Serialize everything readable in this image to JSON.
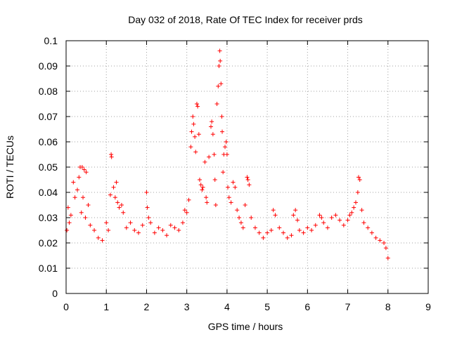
{
  "chart_data": {
    "type": "scatter",
    "title": "Day 032 of 2018, Rate Of TEC Index for receiver prds",
    "xlabel": "GPS time / hours",
    "ylabel": "ROTI / TECUs",
    "xlim": [
      0,
      9
    ],
    "ylim": [
      0,
      0.1
    ],
    "xticks": [
      "0",
      "1",
      "2",
      "3",
      "4",
      "5",
      "6",
      "7",
      "8",
      "9"
    ],
    "yticks": [
      "0",
      "0.01",
      "0.02",
      "0.03",
      "0.04",
      "0.05",
      "0.06",
      "0.07",
      "0.08",
      "0.09",
      "0.1"
    ],
    "grid": true,
    "marker": "+",
    "color": "#ff0000",
    "series": [
      {
        "name": "ROTI",
        "points": [
          [
            0.02,
            0.025
          ],
          [
            0.05,
            0.034
          ],
          [
            0.08,
            0.028
          ],
          [
            0.12,
            0.031
          ],
          [
            0.18,
            0.044
          ],
          [
            0.22,
            0.038
          ],
          [
            0.28,
            0.041
          ],
          [
            0.32,
            0.046
          ],
          [
            0.35,
            0.05
          ],
          [
            0.4,
            0.05
          ],
          [
            0.45,
            0.049
          ],
          [
            0.5,
            0.048
          ],
          [
            0.42,
            0.038
          ],
          [
            0.55,
            0.035
          ],
          [
            0.48,
            0.03
          ],
          [
            0.38,
            0.032
          ],
          [
            0.6,
            0.027
          ],
          [
            0.7,
            0.025
          ],
          [
            0.8,
            0.022
          ],
          [
            0.9,
            0.021
          ],
          [
            1.0,
            0.028
          ],
          [
            1.05,
            0.025
          ],
          [
            1.1,
            0.039
          ],
          [
            1.12,
            0.055
          ],
          [
            1.13,
            0.054
          ],
          [
            1.18,
            0.042
          ],
          [
            1.22,
            0.038
          ],
          [
            1.25,
            0.044
          ],
          [
            1.28,
            0.036
          ],
          [
            1.32,
            0.034
          ],
          [
            1.38,
            0.035
          ],
          [
            1.42,
            0.032
          ],
          [
            1.5,
            0.026
          ],
          [
            1.6,
            0.028
          ],
          [
            1.7,
            0.025
          ],
          [
            1.8,
            0.024
          ],
          [
            1.9,
            0.027
          ],
          [
            2.0,
            0.04
          ],
          [
            2.02,
            0.034
          ],
          [
            2.05,
            0.03
          ],
          [
            2.1,
            0.028
          ],
          [
            2.2,
            0.024
          ],
          [
            2.3,
            0.026
          ],
          [
            2.4,
            0.025
          ],
          [
            2.5,
            0.023
          ],
          [
            2.6,
            0.027
          ],
          [
            2.7,
            0.026
          ],
          [
            2.8,
            0.025
          ],
          [
            2.9,
            0.028
          ],
          [
            2.95,
            0.033
          ],
          [
            3.0,
            0.032
          ],
          [
            3.05,
            0.037
          ],
          [
            3.1,
            0.058
          ],
          [
            3.12,
            0.064
          ],
          [
            3.15,
            0.07
          ],
          [
            3.17,
            0.067
          ],
          [
            3.2,
            0.062
          ],
          [
            3.22,
            0.056
          ],
          [
            3.25,
            0.075
          ],
          [
            3.27,
            0.074
          ],
          [
            3.3,
            0.063
          ],
          [
            3.32,
            0.045
          ],
          [
            3.35,
            0.043
          ],
          [
            3.38,
            0.041
          ],
          [
            3.4,
            0.042
          ],
          [
            3.45,
            0.052
          ],
          [
            3.48,
            0.038
          ],
          [
            3.5,
            0.036
          ],
          [
            3.55,
            0.054
          ],
          [
            3.6,
            0.066
          ],
          [
            3.62,
            0.068
          ],
          [
            3.65,
            0.063
          ],
          [
            3.68,
            0.055
          ],
          [
            3.7,
            0.045
          ],
          [
            3.72,
            0.035
          ],
          [
            3.75,
            0.075
          ],
          [
            3.78,
            0.082
          ],
          [
            3.8,
            0.09
          ],
          [
            3.82,
            0.096
          ],
          [
            3.83,
            0.092
          ],
          [
            3.85,
            0.083
          ],
          [
            3.87,
            0.07
          ],
          [
            3.88,
            0.064
          ],
          [
            3.9,
            0.048
          ],
          [
            3.92,
            0.055
          ],
          [
            3.95,
            0.058
          ],
          [
            3.98,
            0.06
          ],
          [
            4.0,
            0.055
          ],
          [
            4.02,
            0.042
          ],
          [
            4.05,
            0.038
          ],
          [
            4.1,
            0.036
          ],
          [
            4.15,
            0.044
          ],
          [
            4.2,
            0.042
          ],
          [
            4.25,
            0.033
          ],
          [
            4.3,
            0.03
          ],
          [
            4.35,
            0.028
          ],
          [
            4.4,
            0.026
          ],
          [
            4.45,
            0.035
          ],
          [
            4.5,
            0.046
          ],
          [
            4.52,
            0.045
          ],
          [
            4.55,
            0.043
          ],
          [
            4.6,
            0.03
          ],
          [
            4.7,
            0.026
          ],
          [
            4.8,
            0.024
          ],
          [
            4.9,
            0.022
          ],
          [
            5.0,
            0.024
          ],
          [
            5.1,
            0.025
          ],
          [
            5.15,
            0.033
          ],
          [
            5.2,
            0.031
          ],
          [
            5.3,
            0.026
          ],
          [
            5.4,
            0.024
          ],
          [
            5.5,
            0.022
          ],
          [
            5.6,
            0.023
          ],
          [
            5.65,
            0.031
          ],
          [
            5.7,
            0.033
          ],
          [
            5.75,
            0.029
          ],
          [
            5.8,
            0.025
          ],
          [
            5.9,
            0.024
          ],
          [
            6.0,
            0.026
          ],
          [
            6.1,
            0.025
          ],
          [
            6.2,
            0.027
          ],
          [
            6.3,
            0.031
          ],
          [
            6.35,
            0.03
          ],
          [
            6.4,
            0.028
          ],
          [
            6.5,
            0.026
          ],
          [
            6.6,
            0.03
          ],
          [
            6.7,
            0.031
          ],
          [
            6.8,
            0.029
          ],
          [
            6.9,
            0.027
          ],
          [
            7.0,
            0.029
          ],
          [
            7.05,
            0.031
          ],
          [
            7.1,
            0.032
          ],
          [
            7.15,
            0.034
          ],
          [
            7.2,
            0.036
          ],
          [
            7.25,
            0.04
          ],
          [
            7.27,
            0.046
          ],
          [
            7.3,
            0.045
          ],
          [
            7.35,
            0.033
          ],
          [
            7.4,
            0.028
          ],
          [
            7.5,
            0.026
          ],
          [
            7.6,
            0.024
          ],
          [
            7.7,
            0.022
          ],
          [
            7.8,
            0.021
          ],
          [
            7.9,
            0.02
          ],
          [
            7.95,
            0.018
          ],
          [
            8.0,
            0.014
          ]
        ]
      }
    ]
  }
}
